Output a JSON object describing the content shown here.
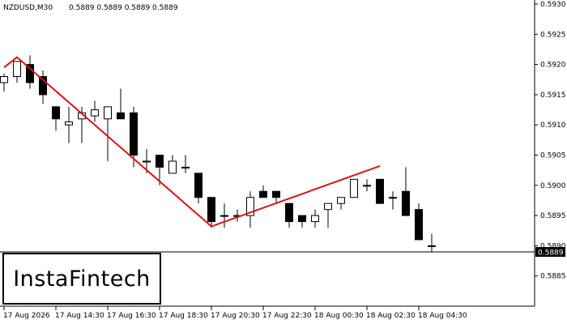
{
  "header": {
    "symbol_tf": "NZDUSD,M30",
    "ohlc": "0.5889 0.5889 0.5889 0.5889"
  },
  "logo": {
    "text": "InstaFintech"
  },
  "chart_data": {
    "type": "candlestick",
    "title": "NZDUSD,M30  0.5889 0.5889 0.5889 0.5889",
    "ylim": [
      0.588,
      0.593
    ],
    "y_ticks": [
      "0.5930",
      "0.5925",
      "0.5920",
      "0.5915",
      "0.5910",
      "0.5905",
      "0.5900",
      "0.5895",
      "0.5890",
      "0.5885"
    ],
    "x_ticks": [
      "17 Aug 2026",
      "17 Aug 14:30",
      "17 Aug 16:30",
      "17 Aug 18:30",
      "17 Aug 20:30",
      "17 Aug 22:30",
      "18 Aug 00:30",
      "18 Aug 02:30",
      "18 Aug 04:30"
    ],
    "current_price": "0.5889",
    "candles": [
      {
        "o": 0.5917,
        "h": 0.59185,
        "l": 0.59155,
        "c": 0.5918
      },
      {
        "o": 0.5918,
        "h": 0.59205,
        "l": 0.5917,
        "c": 0.59205
      },
      {
        "o": 0.592,
        "h": 0.59215,
        "l": 0.5916,
        "c": 0.5917
      },
      {
        "o": 0.5918,
        "h": 0.5919,
        "l": 0.59135,
        "c": 0.5915
      },
      {
        "o": 0.5913,
        "h": 0.5913,
        "l": 0.5909,
        "c": 0.5911
      },
      {
        "o": 0.591,
        "h": 0.5913,
        "l": 0.5907,
        "c": 0.59105
      },
      {
        "o": 0.5911,
        "h": 0.5913,
        "l": 0.5907,
        "c": 0.5912
      },
      {
        "o": 0.59115,
        "h": 0.5914,
        "l": 0.59105,
        "c": 0.59125
      },
      {
        "o": 0.5911,
        "h": 0.5913,
        "l": 0.5904,
        "c": 0.5913
      },
      {
        "o": 0.5912,
        "h": 0.5916,
        "l": 0.5911,
        "c": 0.5911
      },
      {
        "o": 0.5912,
        "h": 0.5913,
        "l": 0.5903,
        "c": 0.5905
      },
      {
        "o": 0.5904,
        "h": 0.5906,
        "l": 0.5902,
        "c": 0.5904
      },
      {
        "o": 0.5905,
        "h": 0.5905,
        "l": 0.59,
        "c": 0.5903
      },
      {
        "o": 0.5902,
        "h": 0.5905,
        "l": 0.5902,
        "c": 0.5904
      },
      {
        "o": 0.5903,
        "h": 0.5905,
        "l": 0.5902,
        "c": 0.5903
      },
      {
        "o": 0.5902,
        "h": 0.5902,
        "l": 0.5897,
        "c": 0.5898
      },
      {
        "o": 0.5898,
        "h": 0.5898,
        "l": 0.5893,
        "c": 0.5894
      },
      {
        "o": 0.5895,
        "h": 0.5897,
        "l": 0.5893,
        "c": 0.5895
      },
      {
        "o": 0.5895,
        "h": 0.5896,
        "l": 0.5894,
        "c": 0.5895
      },
      {
        "o": 0.5895,
        "h": 0.5899,
        "l": 0.5893,
        "c": 0.5898
      },
      {
        "o": 0.5899,
        "h": 0.59,
        "l": 0.5898,
        "c": 0.5898
      },
      {
        "o": 0.5899,
        "h": 0.5899,
        "l": 0.5897,
        "c": 0.5898
      },
      {
        "o": 0.5897,
        "h": 0.5897,
        "l": 0.5893,
        "c": 0.5894
      },
      {
        "o": 0.5895,
        "h": 0.5895,
        "l": 0.5893,
        "c": 0.5894
      },
      {
        "o": 0.5894,
        "h": 0.5896,
        "l": 0.5893,
        "c": 0.5895
      },
      {
        "o": 0.5896,
        "h": 0.5897,
        "l": 0.5893,
        "c": 0.5897
      },
      {
        "o": 0.5897,
        "h": 0.5898,
        "l": 0.5896,
        "c": 0.5898
      },
      {
        "o": 0.5898,
        "h": 0.5901,
        "l": 0.5898,
        "c": 0.5901
      },
      {
        "o": 0.59,
        "h": 0.5901,
        "l": 0.5899,
        "c": 0.59
      },
      {
        "o": 0.5901,
        "h": 0.5901,
        "l": 0.5897,
        "c": 0.5897
      },
      {
        "o": 0.5898,
        "h": 0.5899,
        "l": 0.5896,
        "c": 0.5898
      },
      {
        "o": 0.5899,
        "h": 0.5903,
        "l": 0.5895,
        "c": 0.5895
      },
      {
        "o": 0.5896,
        "h": 0.5897,
        "l": 0.5891,
        "c": 0.5891
      },
      {
        "o": 0.589,
        "h": 0.5892,
        "l": 0.5889,
        "c": 0.589
      }
    ],
    "pattern_line": [
      {
        "candle": 0,
        "price": 0.59195
      },
      {
        "candle": 1,
        "price": 0.59212
      },
      {
        "candle": 16,
        "price": 0.58932
      },
      {
        "candle": 29,
        "price": 0.59032
      }
    ]
  }
}
